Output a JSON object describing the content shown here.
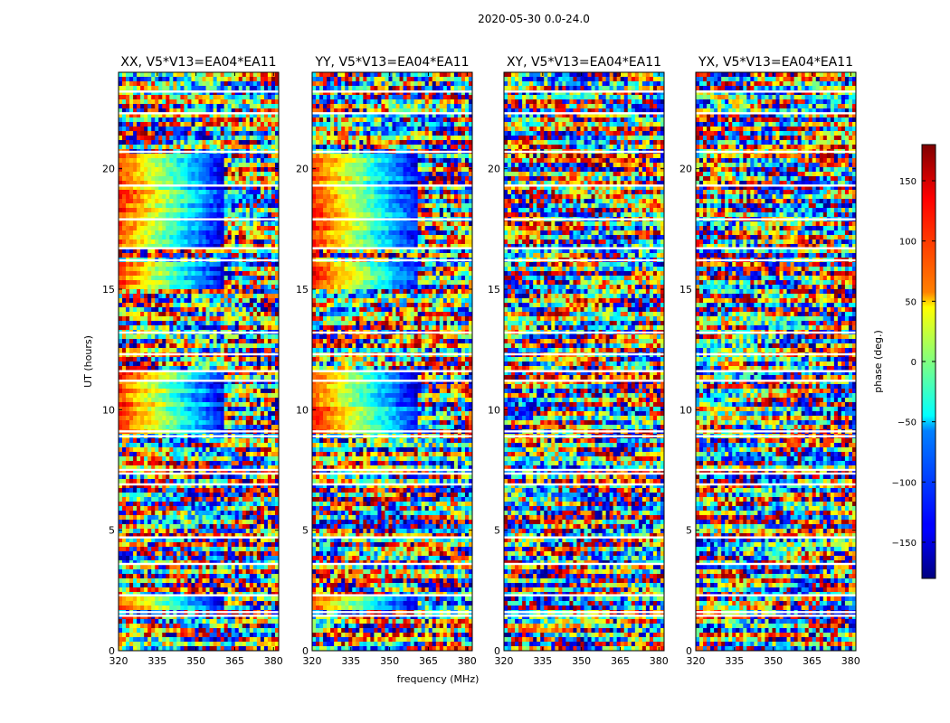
{
  "figure": {
    "suptitle": "2020-05-30 0.0-24.0",
    "xlabel": "frequency (MHz)",
    "ylabel": "UT (hours)",
    "colorbar_label": "phase (deg.)"
  },
  "chart_data": {
    "type": "heatmap",
    "title": "2020-05-30 0.0-24.0",
    "xlabel": "frequency (MHz)",
    "ylabel": "UT (hours)",
    "xlim": [
      320,
      382
    ],
    "ylim": [
      0,
      24
    ],
    "x_ticks": [
      320,
      335,
      350,
      365,
      380
    ],
    "y_ticks": [
      0,
      5,
      10,
      15,
      20
    ],
    "colormap": "jet",
    "colorbar": {
      "label": "phase (deg.)",
      "range": [
        -180,
        180
      ],
      "ticks": [
        -150,
        -100,
        -50,
        0,
        50,
        100,
        150
      ],
      "tick_labels": [
        "−150",
        "−100",
        "−50",
        "0",
        "50",
        "100",
        "150"
      ]
    },
    "panels": [
      {
        "title": "XX, V5*V13=EA04*EA11",
        "polarization": "XX"
      },
      {
        "title": "YY, V5*V13=EA04*EA11",
        "polarization": "YY"
      },
      {
        "title": "XY, V5*V13=EA04*EA11",
        "polarization": "XY"
      },
      {
        "title": "YX, V5*V13=EA04*EA11",
        "polarization": "YX"
      }
    ],
    "flagged_time_gaps_hours": [
      1.45,
      1.6,
      2.3,
      3.6,
      4.7,
      6.9,
      7.35,
      7.5,
      8.9,
      9.1,
      11.2,
      11.6,
      12.3,
      13.2,
      16.2,
      16.7,
      17.9,
      19.3,
      20.7,
      22.3,
      23.2
    ],
    "coherent_intervals_hours": [
      [
        1.7,
        2.25
      ],
      [
        8.95,
        11.65
      ],
      [
        15.0,
        16.1
      ],
      [
        16.6,
        20.7
      ]
    ],
    "grid": false,
    "legend": "none"
  }
}
